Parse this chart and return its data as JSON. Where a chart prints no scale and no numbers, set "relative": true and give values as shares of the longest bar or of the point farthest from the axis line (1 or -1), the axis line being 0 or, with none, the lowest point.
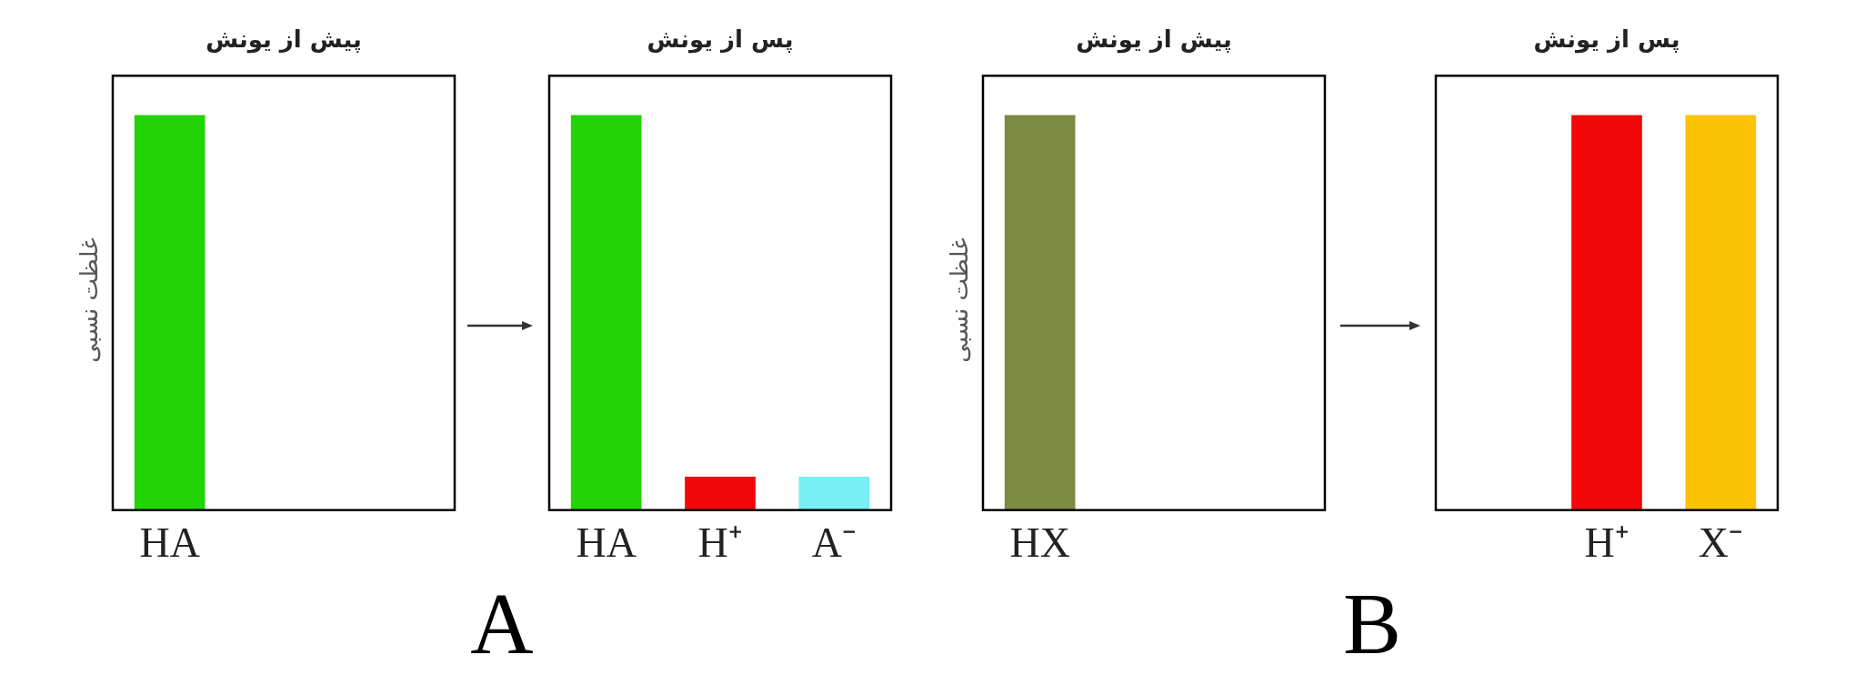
{
  "chart_data": [
    {
      "type": "bar",
      "title": "پیش از یونش",
      "ylabel": "غلظت نسبی",
      "relative": true,
      "categories": [
        "HA"
      ],
      "series": [
        {
          "color": "#22d404",
          "values": [
            1
          ]
        }
      ],
      "annotations": [
        "A"
      ],
      "legend": false,
      "grid": false
    },
    {
      "type": "bar",
      "title": "پس از یونش",
      "relative": true,
      "categories": [
        "HA",
        "H⁺",
        "A⁻"
      ],
      "series": [
        {
          "colors": [
            "#22d404",
            "#f20808",
            "#78eef5"
          ],
          "values": [
            1,
            0.085,
            0.085
          ]
        }
      ],
      "legend": false,
      "grid": false
    },
    {
      "type": "bar",
      "title": "پیش از یونش",
      "ylabel": "غلظت نسبی",
      "relative": true,
      "categories": [
        "HX"
      ],
      "series": [
        {
          "color": "#7d8a44",
          "values": [
            1
          ]
        }
      ],
      "annotations": [
        "B"
      ],
      "legend": false,
      "grid": false
    },
    {
      "type": "bar",
      "title": "پس از یونش",
      "relative": true,
      "categories": [
        null,
        "H⁺",
        "X⁻"
      ],
      "series": [
        {
          "colors": [
            "#f20808",
            "#f20808",
            "#fcc204"
          ],
          "values": [
            null,
            1,
            1
          ]
        }
      ],
      "legend": false,
      "grid": false
    }
  ]
}
